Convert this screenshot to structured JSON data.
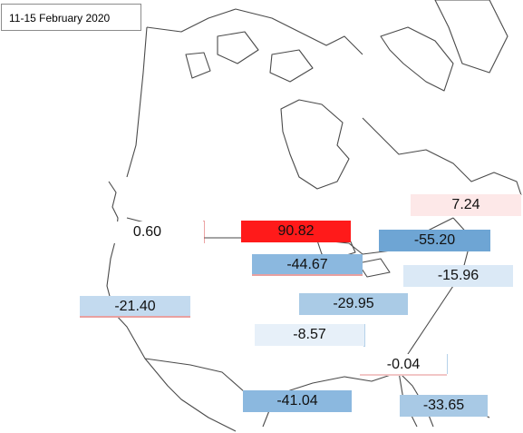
{
  "title": "11-15  February 2020",
  "colors": {
    "strong_positive": "#ff1a1a",
    "weak_positive": "#fde8e8",
    "neutral": "#ffffff",
    "weak_negative": "#dbe9f6",
    "moderate_negative": "#aacbe6",
    "strong_negative": "#6ea5d4",
    "border_line": "#555555"
  },
  "regions": [
    {
      "id": "northwest",
      "value": "0.60"
    },
    {
      "id": "upper-midwest",
      "value": "90.82"
    },
    {
      "id": "northeast-canada",
      "value": "7.24"
    },
    {
      "id": "ontario-quebec",
      "value": "-55.20"
    },
    {
      "id": "great-lakes",
      "value": "-44.67"
    },
    {
      "id": "northeast-us",
      "value": "-15.96"
    },
    {
      "id": "west",
      "value": "-21.40"
    },
    {
      "id": "ohio-valley",
      "value": "-29.95"
    },
    {
      "id": "central-plains",
      "value": "-8.57"
    },
    {
      "id": "southeast",
      "value": "-0.04"
    },
    {
      "id": "south-central",
      "value": "-41.04"
    },
    {
      "id": "florida",
      "value": "-33.65"
    }
  ]
}
